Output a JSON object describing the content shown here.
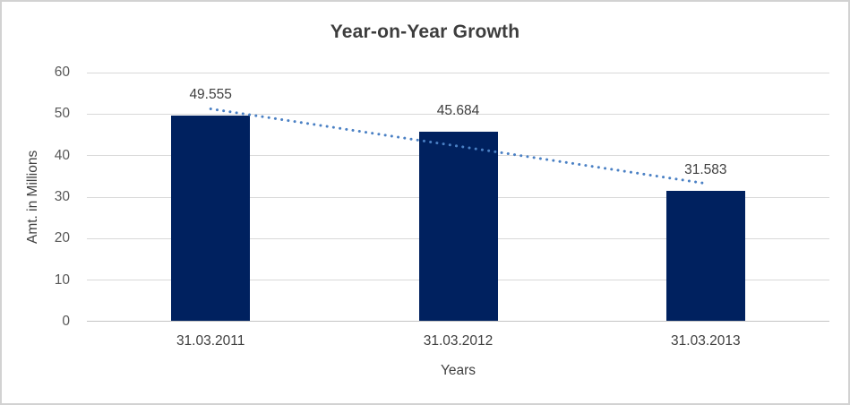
{
  "chart_data": {
    "type": "bar",
    "title": "Year-on-Year Growth",
    "categories": [
      "31.03.2011",
      "31.03.2012",
      "31.03.2013"
    ],
    "values": [
      49.555,
      45.684,
      31.583
    ],
    "data_labels": [
      "49.555",
      "45.684",
      "31.583"
    ],
    "xlabel": "Years",
    "ylabel": "Amt. in Millions",
    "ylim": [
      0,
      60
    ],
    "yticks": [
      0,
      10,
      20,
      30,
      40,
      50,
      60
    ],
    "grid": true,
    "legend_position": "none",
    "trendline": {
      "type": "linear",
      "style": "dotted",
      "color": "#4a80c4"
    },
    "colors": {
      "bar": "#00215f",
      "gridline": "#d9d9d9",
      "axis_line": "#c4c4c4",
      "title_text": "#3d3d3d",
      "tick_text": "#595959",
      "label_text": "#3f3f3f",
      "background": "#ffffff",
      "border": "#d2d2d2"
    }
  }
}
